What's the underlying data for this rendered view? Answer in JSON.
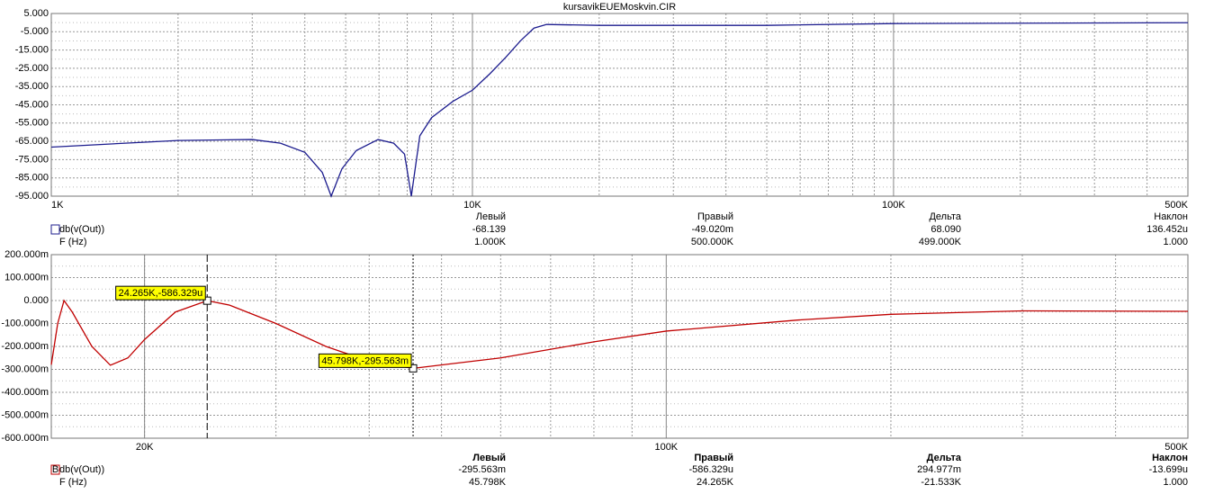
{
  "chart_data": [
    {
      "type": "line",
      "title": "kursavikEUEMoskvin.CIR",
      "xscale": "log",
      "xlim": [
        1000,
        500000
      ],
      "xticks": [
        {
          "value": 1000,
          "label": "1K"
        },
        {
          "value": 10000,
          "label": "10K"
        },
        {
          "value": 100000,
          "label": "100K"
        },
        {
          "value": 500000,
          "label": "500K"
        }
      ],
      "ylim": [
        -95,
        5
      ],
      "yticks": [
        {
          "value": 5,
          "label": "5.000"
        },
        {
          "value": -5,
          "label": "-5.000"
        },
        {
          "value": -15,
          "label": "-15.000"
        },
        {
          "value": -25,
          "label": "-25.000"
        },
        {
          "value": -35,
          "label": "-35.000"
        },
        {
          "value": -45,
          "label": "-45.000"
        },
        {
          "value": -55,
          "label": "-55.000"
        },
        {
          "value": -65,
          "label": "-65.000"
        },
        {
          "value": -75,
          "label": "-75.000"
        },
        {
          "value": -85,
          "label": "-85.000"
        },
        {
          "value": -95,
          "label": "-95.000"
        }
      ],
      "grid": true,
      "x": [
        1000,
        1500,
        2000,
        3000,
        3500,
        4000,
        4400,
        4620,
        4900,
        5300,
        5970,
        6500,
        6900,
        7160,
        7500,
        8000,
        9000,
        10000,
        11000,
        12000,
        13000,
        14000,
        15000,
        20000,
        50000,
        100000,
        500000
      ],
      "series": [
        {
          "color": "#1c1c8e",
          "values": [
            -68.139,
            -66,
            -64.5,
            -64,
            -66,
            -71,
            -82,
            -95,
            -80,
            -70,
            -64,
            -66,
            -72,
            -95,
            -62,
            -52,
            -43,
            -37,
            -28,
            -19,
            -10,
            -3,
            -1,
            -1.5,
            -1.5,
            -0.5,
            -0.049
          ]
        }
      ],
      "readout": {
        "headers": [
          "Левый",
          "Правый",
          "Дельта",
          "Наклон"
        ],
        "rows": [
          {
            "label": "db(v(Out))",
            "values": [
              "-68.139",
              "-49.020m",
              "68.090",
              "136.452u"
            ]
          },
          {
            "label": "F (Hz)",
            "values": [
              "1.000K",
              "500.000K",
              "499.000K",
              "1.000"
            ]
          }
        ]
      }
    },
    {
      "type": "line",
      "xscale": "log",
      "xlim": [
        15000,
        500000
      ],
      "xticks": [
        {
          "value": 20000,
          "label": "20K"
        },
        {
          "value": 100000,
          "label": "100K"
        },
        {
          "value": 500000,
          "label": "500K"
        }
      ],
      "ylim": [
        -0.6,
        0.2
      ],
      "yticks": [
        {
          "value": 0.2,
          "label": "200.000m"
        },
        {
          "value": 0.1,
          "label": "100.000m"
        },
        {
          "value": 0,
          "label": "0.000"
        },
        {
          "value": -0.1,
          "label": "-100.000m"
        },
        {
          "value": -0.2,
          "label": "-200.000m"
        },
        {
          "value": -0.3,
          "label": "-300.000m"
        },
        {
          "value": -0.4,
          "label": "-400.000m"
        },
        {
          "value": -0.5,
          "label": "-500.000m"
        },
        {
          "value": -0.6,
          "label": "-600.000m"
        }
      ],
      "grid": true,
      "x": [
        15000,
        15300,
        15600,
        16000,
        17000,
        18000,
        19000,
        20000,
        22000,
        24265,
        26000,
        30000,
        35000,
        40000,
        45798,
        60000,
        80000,
        100000,
        150000,
        200000,
        300000,
        500000
      ],
      "series": [
        {
          "color": "#c00000",
          "values": [
            -0.28,
            -0.1,
            0,
            -0.05,
            -0.2,
            -0.282,
            -0.25,
            -0.17,
            -0.05,
            -0.000586329,
            -0.02,
            -0.1,
            -0.2,
            -0.265,
            -0.295563,
            -0.25,
            -0.18,
            -0.133,
            -0.085,
            -0.06,
            -0.045,
            -0.047
          ]
        }
      ],
      "cursors": [
        {
          "x": 24265,
          "y": -0.000586329,
          "label": "24.265K,-586.329u",
          "style": "dash"
        },
        {
          "x": 45798,
          "y": -0.295563,
          "label": "45.798K,-295.563m",
          "style": "dot"
        }
      ],
      "readout": {
        "headers": [
          "Левый",
          "Правый",
          "Дельта",
          "Наклон"
        ],
        "rows": [
          {
            "tag": "B",
            "label": "db(v(Out))",
            "values": [
              "-295.563m",
              "-586.329u",
              "294.977m",
              "-13.699u"
            ]
          },
          {
            "label": "F (Hz)",
            "values": [
              "45.798K",
              "24.265K",
              "-21.533K",
              "1.000"
            ]
          }
        ]
      }
    }
  ]
}
